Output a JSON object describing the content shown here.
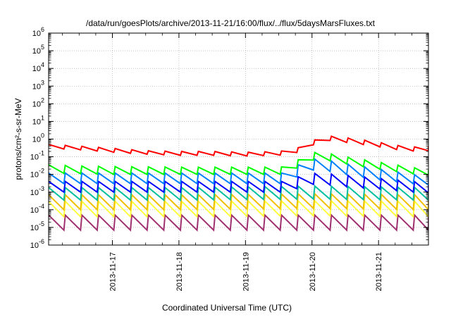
{
  "chart_data": {
    "type": "line",
    "title": "/data/run/goesPlots/archive/2013-11-21/16:00/flux/../flux/5daysMarsFluxes.txt",
    "xlabel": "Coordinated Universal Time (UTC)",
    "ylabel": "protons/cm²-s-sr-MeV",
    "ylim": [
      1e-06,
      1000000.0
    ],
    "yscale": "log",
    "y_tick_labels": [
      {
        "base": "10",
        "exp": "-6"
      },
      {
        "base": "10",
        "exp": "-5"
      },
      {
        "base": "10",
        "exp": "-4"
      },
      {
        "base": "10",
        "exp": "-3"
      },
      {
        "base": "10",
        "exp": "-2"
      },
      {
        "base": "10",
        "exp": "-1"
      },
      {
        "base": "10",
        "exp": "0"
      },
      {
        "base": "10",
        "exp": "1"
      },
      {
        "base": "10",
        "exp": "2"
      },
      {
        "base": "10",
        "exp": "3"
      },
      {
        "base": "10",
        "exp": "4"
      },
      {
        "base": "10",
        "exp": "5"
      },
      {
        "base": "10",
        "exp": "6"
      }
    ],
    "xlim": [
      "2013-11-16 01:00",
      "2013-11-21 18:00"
    ],
    "x_ticks": [
      "2013-11-17",
      "2013-11-18",
      "2013-11-19",
      "2013-11-20",
      "2013-11-21"
    ],
    "grid": true,
    "legend": "none",
    "oscillation_period_hours": 6,
    "series": [
      {
        "color": "#ff0000",
        "x": [
          "2013-11-16 01:00",
          "2013-11-16 12:00",
          "2013-11-17 00:00",
          "2013-11-17 12:00",
          "2013-11-18 00:00",
          "2013-11-18 12:00",
          "2013-11-19 00:00",
          "2013-11-19 12:00",
          "2013-11-19 18:00",
          "2013-11-19 22:00",
          "2013-11-20 04:00",
          "2013-11-20 08:00",
          "2013-11-20 14:00",
          "2013-11-20 22:00",
          "2013-11-21 06:00",
          "2013-11-21 14:00",
          "2013-11-21 18:00"
        ],
        "peak": [
          0.5,
          0.4,
          0.3,
          0.22,
          0.2,
          0.2,
          0.18,
          0.2,
          0.28,
          0.5,
          1.6,
          1.4,
          1.1,
          0.75,
          0.45,
          0.35,
          0.38
        ],
        "trough": [
          0.3,
          0.25,
          0.18,
          0.14,
          0.12,
          0.12,
          0.11,
          0.12,
          0.16,
          0.3,
          0.9,
          0.8,
          0.6,
          0.42,
          0.26,
          0.2,
          0.22
        ]
      },
      {
        "color": "#00ff00",
        "x": [
          "2013-11-16 01:00",
          "2013-11-16 12:00",
          "2013-11-17 00:00",
          "2013-11-17 12:00",
          "2013-11-18 00:00",
          "2013-11-18 12:00",
          "2013-11-19 00:00",
          "2013-11-19 12:00",
          "2013-11-19 16:00",
          "2013-11-19 20:00",
          "2013-11-20 02:00",
          "2013-11-20 12:00",
          "2013-11-21 00:00",
          "2013-11-21 12:00",
          "2013-11-21 18:00"
        ],
        "peak": [
          0.035,
          0.03,
          0.028,
          0.027,
          0.026,
          0.026,
          0.026,
          0.026,
          0.028,
          0.09,
          0.2,
          0.1,
          0.05,
          0.025,
          0.018
        ],
        "trough": [
          0.012,
          0.011,
          0.01,
          0.01,
          0.01,
          0.01,
          0.01,
          0.01,
          0.011,
          0.035,
          0.08,
          0.04,
          0.02,
          0.011,
          0.009
        ]
      },
      {
        "color": "#0080ff",
        "x": [
          "2013-11-16 01:00",
          "2013-11-17 00:00",
          "2013-11-18 00:00",
          "2013-11-19 00:00",
          "2013-11-19 16:00",
          "2013-11-19 20:00",
          "2013-11-20 02:00",
          "2013-11-20 12:00",
          "2013-11-21 00:00",
          "2013-11-21 12:00",
          "2013-11-21 18:00"
        ],
        "peak": [
          0.012,
          0.012,
          0.012,
          0.012,
          0.012,
          0.05,
          0.08,
          0.04,
          0.02,
          0.01,
          0.008
        ],
        "trough": [
          0.003,
          0.003,
          0.003,
          0.003,
          0.003,
          0.012,
          0.02,
          0.01,
          0.005,
          0.003,
          0.0025
        ]
      },
      {
        "color": "#0000ff",
        "x": [
          "2013-11-16 01:00",
          "2013-11-17 00:00",
          "2013-11-18 00:00",
          "2013-11-19 00:00",
          "2013-11-19 16:00",
          "2013-11-19 20:00",
          "2013-11-20 02:00",
          "2013-11-20 12:00",
          "2013-11-21 00:00",
          "2013-11-21 12:00",
          "2013-11-21 18:00"
        ],
        "peak": [
          0.004,
          0.004,
          0.004,
          0.004,
          0.004,
          0.009,
          0.012,
          0.009,
          0.006,
          0.004,
          0.0035
        ],
        "trough": [
          0.001,
          0.001,
          0.001,
          0.001,
          0.001,
          0.002,
          0.003,
          0.002,
          0.0015,
          0.001,
          0.0009
        ]
      },
      {
        "color": "#00c0a0",
        "x": [
          "2013-11-16 01:00",
          "2013-11-18 00:00",
          "2013-11-20 00:00",
          "2013-11-21 18:00"
        ],
        "peak": [
          0.0018,
          0.0018,
          0.0022,
          0.0018
        ],
        "trough": [
          0.00035,
          0.00035,
          0.0004,
          0.00035
        ]
      },
      {
        "color": "#f0c000",
        "x": [
          "2013-11-16 01:00",
          "2013-11-18 00:00",
          "2013-11-20 00:00",
          "2013-11-21 18:00"
        ],
        "peak": [
          0.0007,
          0.0007,
          0.0008,
          0.0007
        ],
        "trough": [
          0.0001,
          0.0001,
          0.00012,
          0.0001
        ]
      },
      {
        "color": "#ffff40",
        "x": [
          "2013-11-16 01:00",
          "2013-11-18 00:00",
          "2013-11-20 00:00",
          "2013-11-21 18:00"
        ],
        "peak": [
          0.0003,
          0.0003,
          0.00032,
          0.0003
        ],
        "trough": [
          4e-05,
          4e-05,
          4.5e-05,
          4e-05
        ]
      },
      {
        "color": "#a03070",
        "x": [
          "2013-11-16 01:00",
          "2013-11-18 00:00",
          "2013-11-20 00:00",
          "2013-11-21 18:00"
        ],
        "peak": [
          5e-05,
          5e-05,
          5e-05,
          5e-05
        ],
        "trough": [
          7e-06,
          7e-06,
          7e-06,
          7e-06
        ]
      }
    ]
  }
}
